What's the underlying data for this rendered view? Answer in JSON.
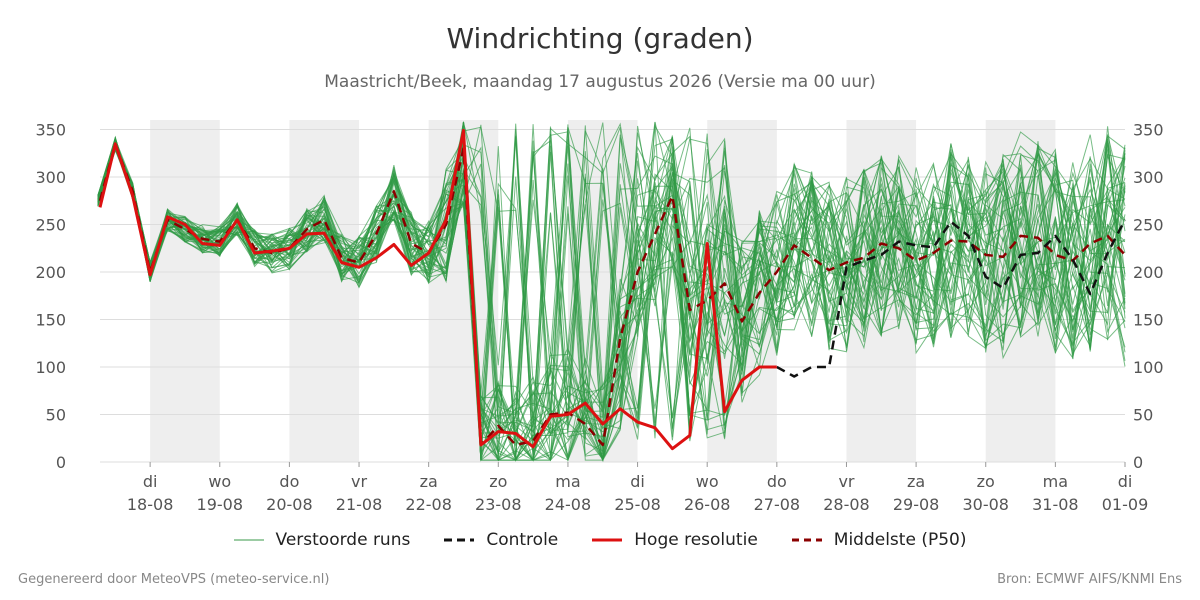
{
  "title": "Windrichting (graden)",
  "subtitle": "Maastricht/Beek, maandag 17 augustus 2026 (Versie ma 00 uur)",
  "footer_left": "Gegenereerd door MeteoVPS (meteo-service.nl)",
  "footer_right": "Bron: ECMWF AIFS/KNMI Ens",
  "legend": [
    {
      "label": "Verstoorde runs",
      "color": "#3a9a4a",
      "style": "thin"
    },
    {
      "label": "Controle",
      "color": "#111111",
      "style": "dashed"
    },
    {
      "label": "Hoge resolutie",
      "color": "#dd1111",
      "style": "solid"
    },
    {
      "label": "Middelste (P50)",
      "color": "#8b0000",
      "style": "dashed"
    }
  ],
  "chart_data": {
    "type": "line",
    "xlabel": "",
    "ylabel": "",
    "ylim": [
      0,
      360
    ],
    "xlim_days": [
      17.28,
      32.0
    ],
    "yticks": [
      0,
      50,
      100,
      150,
      200,
      250,
      300,
      350
    ],
    "grid": true,
    "legend_position": "bottom",
    "x_tick_days": [
      18,
      19,
      20,
      21,
      22,
      23,
      24,
      25,
      26,
      27,
      28,
      29,
      30,
      31,
      32
    ],
    "x_tick_labels": [
      [
        "di",
        "18-08"
      ],
      [
        "wo",
        "19-08"
      ],
      [
        "do",
        "20-08"
      ],
      [
        "vr",
        "21-08"
      ],
      [
        "za",
        "22-08"
      ],
      [
        "zo",
        "23-08"
      ],
      [
        "ma",
        "24-08"
      ],
      [
        "di",
        "25-08"
      ],
      [
        "wo",
        "26-08"
      ],
      [
        "do",
        "27-08"
      ],
      [
        "vr",
        "28-08"
      ],
      [
        "za",
        "29-08"
      ],
      [
        "zo",
        "30-08"
      ],
      [
        "ma",
        "31-08"
      ],
      [
        "di",
        "01-09"
      ]
    ],
    "shaded_days": [
      [
        18,
        19
      ],
      [
        20,
        21
      ],
      [
        22,
        23
      ],
      [
        24,
        25
      ],
      [
        26,
        27
      ],
      [
        28,
        29
      ],
      [
        30,
        31
      ]
    ],
    "x_units": "day of August 2026 (32 = 1 september)",
    "series": [
      {
        "name": "Hoge resolutie",
        "color": "#dd1111",
        "dash": false,
        "width": 3,
        "x": [
          17.25,
          17.5,
          17.75,
          18.0,
          18.25,
          18.5,
          18.75,
          19.0,
          19.25,
          19.5,
          19.75,
          20.0,
          20.25,
          20.5,
          20.75,
          21.0,
          21.25,
          21.5,
          21.75,
          22.0,
          22.25,
          22.5,
          22.75,
          23.0,
          23.25,
          23.5,
          23.75,
          24.0,
          24.25,
          24.5,
          24.75,
          25.0,
          25.25,
          25.5,
          25.75,
          26.0,
          26.25,
          26.5,
          26.75,
          27.0
        ],
        "y": [
          268,
          335,
          280,
          197,
          258,
          250,
          230,
          228,
          255,
          220,
          222,
          225,
          240,
          241,
          210,
          205,
          215,
          229,
          207,
          220,
          255,
          349,
          18,
          32,
          30,
          16,
          48,
          50,
          62,
          40,
          56,
          42,
          36,
          14,
          28,
          230,
          53,
          86,
          100,
          100
        ]
      },
      {
        "name": "Middelste (P50)",
        "color": "#8b0000",
        "dash": true,
        "width": 2.5,
        "x": [
          17.25,
          17.5,
          17.75,
          18.0,
          18.25,
          18.5,
          18.75,
          19.0,
          19.25,
          19.5,
          19.75,
          20.0,
          20.25,
          20.5,
          20.75,
          21.0,
          21.25,
          21.5,
          21.75,
          22.0,
          22.25,
          22.5,
          22.75,
          23.0,
          23.25,
          23.5,
          23.75,
          24.0,
          24.25,
          24.5,
          24.75,
          25.0,
          25.25,
          25.5,
          25.75,
          26.0,
          26.25,
          26.5,
          26.75,
          27.0,
          27.25,
          27.5,
          27.75,
          28.0,
          28.25,
          28.5,
          28.75,
          29.0,
          29.25,
          29.5,
          29.75,
          30.0,
          30.25,
          30.5,
          30.75,
          31.0,
          31.25,
          31.5,
          31.75,
          32.0
        ],
        "y": [
          275,
          335,
          285,
          200,
          255,
          245,
          235,
          232,
          255,
          225,
          220,
          225,
          245,
          255,
          215,
          210,
          240,
          285,
          230,
          220,
          250,
          330,
          18,
          38,
          18,
          22,
          50,
          52,
          40,
          18,
          130,
          200,
          240,
          280,
          160,
          170,
          188,
          148,
          178,
          200,
          228,
          215,
          202,
          210,
          215,
          230,
          225,
          212,
          220,
          233,
          232,
          218,
          216,
          238,
          236,
          218,
          212,
          230,
          238,
          218
        ]
      },
      {
        "name": "Controle",
        "color": "#111111",
        "dash": true,
        "width": 2.5,
        "x": [
          27.0,
          27.25,
          27.5,
          27.75,
          28.0,
          28.25,
          28.5,
          28.75,
          29.0,
          29.25,
          29.5,
          29.75,
          30.0,
          30.25,
          30.5,
          30.75,
          31.0,
          31.25,
          31.5,
          31.75,
          32.0
        ],
        "y": [
          100,
          90,
          100,
          100,
          205,
          212,
          218,
          232,
          228,
          226,
          253,
          238,
          195,
          183,
          218,
          220,
          238,
          213,
          177,
          220,
          255
        ]
      }
    ]
  }
}
